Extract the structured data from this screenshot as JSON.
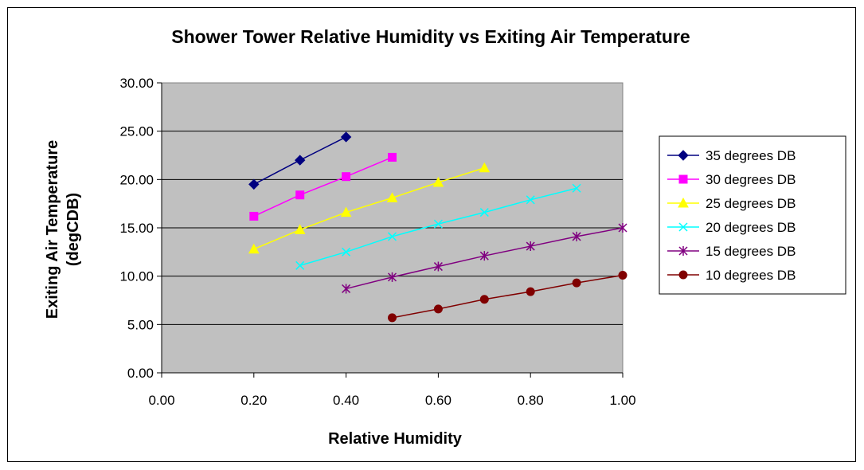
{
  "chart_data": {
    "type": "line",
    "title": "Shower Tower Relative Humidity vs Exiting Air Temperature",
    "xlabel": "Relative Humidity",
    "ylabel_lines": [
      "Exiting Air Temperature",
      "(degCDB)"
    ],
    "xlim": [
      0,
      1
    ],
    "ylim": [
      0,
      30
    ],
    "x_ticks": [
      "0.00",
      "0.20",
      "0.40",
      "0.60",
      "0.80",
      "1.00"
    ],
    "y_ticks": [
      "0.00",
      "5.00",
      "10.00",
      "15.00",
      "20.00",
      "25.00",
      "30.00"
    ],
    "grid": "horizontal",
    "plot_background": "#c0c0c0",
    "legend_position": "right",
    "series": [
      {
        "name": "35 degrees DB",
        "color": "#000080",
        "marker": "diamond",
        "x": [
          0.2,
          0.3,
          0.4
        ],
        "y": [
          19.5,
          22.0,
          24.4
        ]
      },
      {
        "name": "30 degrees DB",
        "color": "#ff00ff",
        "marker": "square",
        "x": [
          0.2,
          0.3,
          0.4,
          0.5
        ],
        "y": [
          16.2,
          18.4,
          20.3,
          22.3
        ]
      },
      {
        "name": "25 degrees DB",
        "color": "#ffff00",
        "marker": "triangle",
        "x": [
          0.2,
          0.3,
          0.4,
          0.5,
          0.6,
          0.7
        ],
        "y": [
          12.8,
          14.8,
          16.6,
          18.1,
          19.7,
          21.2
        ]
      },
      {
        "name": "20 degrees DB",
        "color": "#00ffff",
        "marker": "x",
        "x": [
          0.3,
          0.4,
          0.5,
          0.6,
          0.7,
          0.8,
          0.9
        ],
        "y": [
          11.1,
          12.5,
          14.1,
          15.4,
          16.6,
          17.9,
          19.1
        ]
      },
      {
        "name": "15 degrees DB",
        "color": "#800080",
        "marker": "star",
        "x": [
          0.4,
          0.5,
          0.6,
          0.7,
          0.8,
          0.9,
          1.0
        ],
        "y": [
          8.7,
          9.9,
          11.0,
          12.1,
          13.1,
          14.1,
          15.0
        ]
      },
      {
        "name": "10 degrees DB",
        "color": "#800000",
        "marker": "circle",
        "x": [
          0.5,
          0.6,
          0.7,
          0.8,
          0.9,
          1.0
        ],
        "y": [
          5.7,
          6.6,
          7.6,
          8.4,
          9.3,
          10.1
        ]
      }
    ]
  }
}
